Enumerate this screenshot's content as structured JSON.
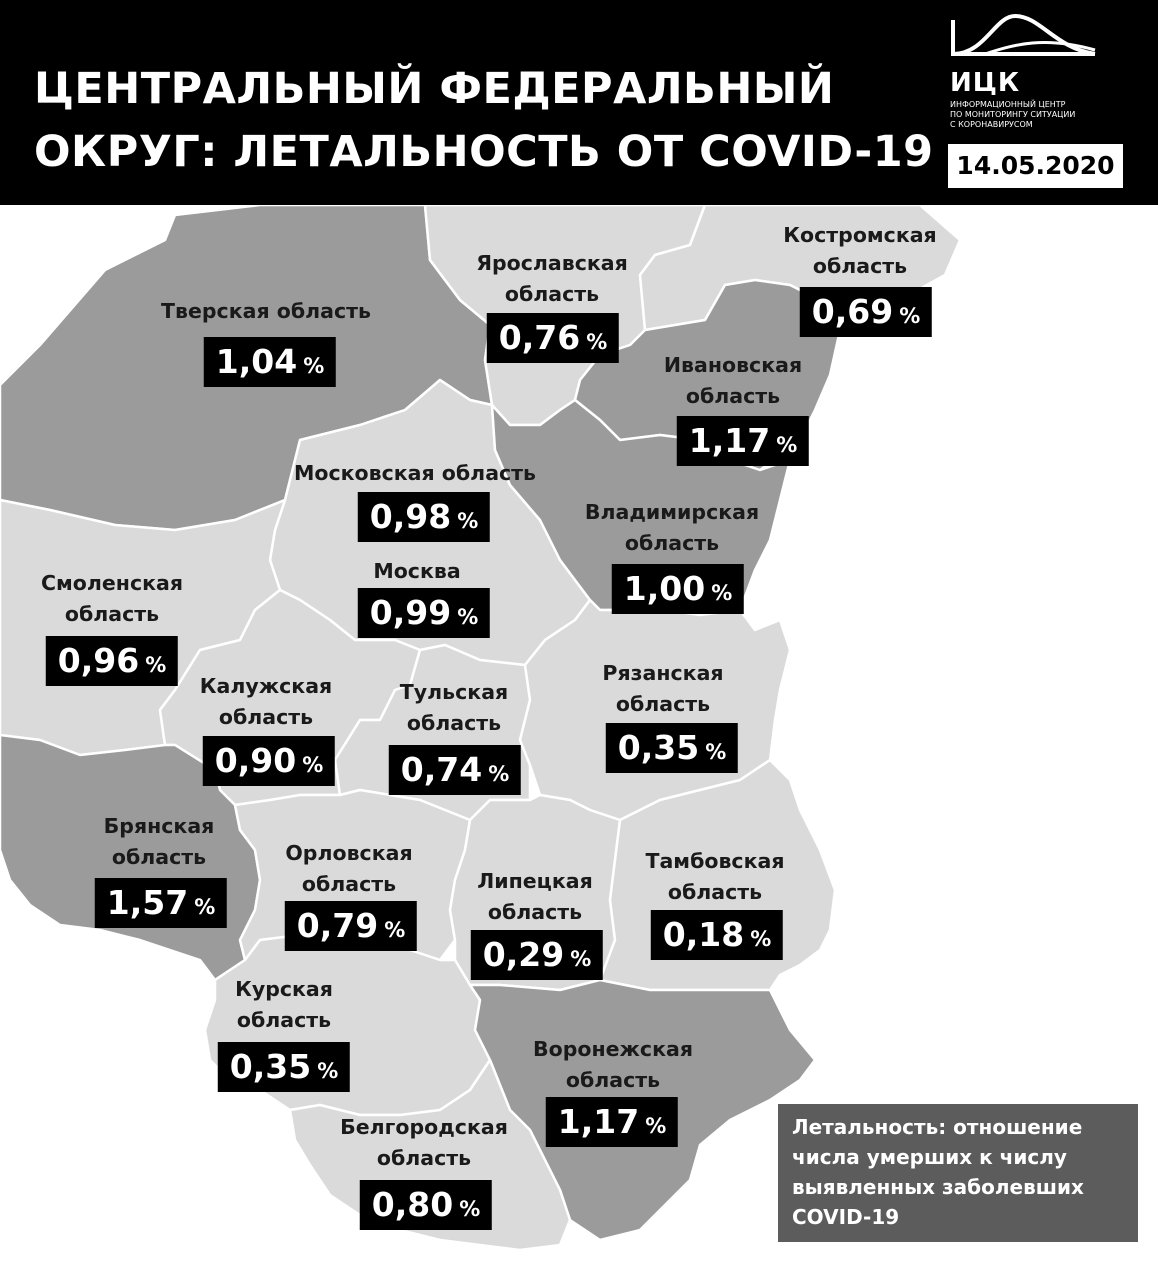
{
  "header": {
    "title_lines": [
      "ЦЕНТРАЛЬНЫЙ ФЕДЕРАЛЬНЫЙ",
      "ОКРУГ: ЛЕТАЛЬНОСТЬ ОТ COVID-19"
    ],
    "date": "14.05.2020",
    "logo": {
      "name": "ИЦК",
      "description_lines": [
        "ИНФОРМАЦИОННЫЙ ЦЕНТР",
        "ПО МОНИТОРИНГУ СИТУАЦИИ",
        "С КОРОНАВИРУСОМ"
      ]
    }
  },
  "colors": {
    "header_bg": "#000000",
    "high_fill": "#9b9b9b",
    "low_fill": "#dadada",
    "border": "#ffffff",
    "legend_bg": "#5c5c5c"
  },
  "percent_sign": "%",
  "regions": [
    {
      "id": "tver",
      "name_lines": [
        "Тверская область"
      ],
      "value": "1,04",
      "shade": "dark"
    },
    {
      "id": "yaroslavl",
      "name_lines": [
        "Ярославская",
        "область"
      ],
      "value": "0,76",
      "shade": "light"
    },
    {
      "id": "kostroma",
      "name_lines": [
        "Костромская",
        "область"
      ],
      "value": "0,69",
      "shade": "light"
    },
    {
      "id": "ivanovo",
      "name_lines": [
        "Ивановская",
        "область"
      ],
      "value": "1,17",
      "shade": "dark"
    },
    {
      "id": "moscow-oblast",
      "name_lines": [
        "Московская область"
      ],
      "value": "0,98",
      "shade": "light"
    },
    {
      "id": "moscow",
      "name_lines": [
        "Москва"
      ],
      "value": "0,99",
      "shade": "light"
    },
    {
      "id": "vladimir",
      "name_lines": [
        "Владимирская",
        "область"
      ],
      "value": "1,00",
      "shade": "dark"
    },
    {
      "id": "smolensk",
      "name_lines": [
        "Смоленская",
        "область"
      ],
      "value": "0,96",
      "shade": "light"
    },
    {
      "id": "kaluga",
      "name_lines": [
        "Калужская",
        "область"
      ],
      "value": "0,90",
      "shade": "light"
    },
    {
      "id": "tula",
      "name_lines": [
        "Тульская",
        "область"
      ],
      "value": "0,74",
      "shade": "light"
    },
    {
      "id": "ryazan",
      "name_lines": [
        "Рязанская",
        "область"
      ],
      "value": "0,35",
      "shade": "light"
    },
    {
      "id": "bryansk",
      "name_lines": [
        "Брянская",
        "область"
      ],
      "value": "1,57",
      "shade": "dark"
    },
    {
      "id": "oryol",
      "name_lines": [
        "Орловская",
        "область"
      ],
      "value": "0,79",
      "shade": "light"
    },
    {
      "id": "lipetsk",
      "name_lines": [
        "Липецкая",
        "область"
      ],
      "value": "0,29",
      "shade": "light"
    },
    {
      "id": "tambov",
      "name_lines": [
        "Тамбовская",
        "область"
      ],
      "value": "0,18",
      "shade": "light"
    },
    {
      "id": "kursk",
      "name_lines": [
        "Курская",
        "область"
      ],
      "value": "0,35",
      "shade": "light"
    },
    {
      "id": "voronezh",
      "name_lines": [
        "Воронежская",
        "область"
      ],
      "value": "1,17",
      "shade": "dark"
    },
    {
      "id": "belgorod",
      "name_lines": [
        "Белгородская",
        "область"
      ],
      "value": "0,80",
      "shade": "light"
    }
  ],
  "legend": {
    "lines": [
      "Летальность: отношение",
      "числа умерших к числу",
      "выявленных заболевших",
      "COVID-19"
    ]
  }
}
